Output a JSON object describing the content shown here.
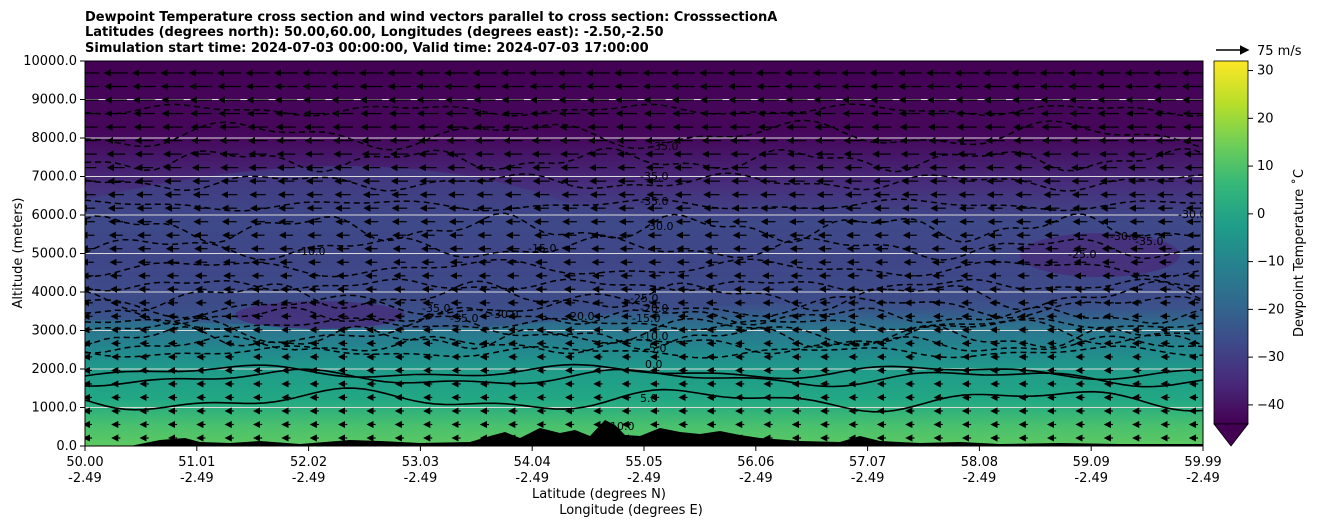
{
  "chart_data": {
    "type": "heatmap",
    "title_lines": [
      "Dewpoint Temperature cross section and wind vectors parallel to cross section: CrosssectionA",
      "Latitudes (degrees north): 50.00,60.00, Longitudes (degrees east): -2.50,-2.50",
      "Simulation start time: 2024-07-03 00:00:00, Valid time: 2024-07-03 17:00:00"
    ],
    "ylabel": "Altitude (meters)",
    "xlabel_lines": [
      "Latitude (degrees N)",
      "Longitude (degrees E)"
    ],
    "ylim": [
      0,
      10000
    ],
    "y_ticks": [
      "0.0",
      "1000.0",
      "2000.0",
      "3000.0",
      "4000.0",
      "5000.0",
      "6000.0",
      "7000.0",
      "8000.0",
      "9000.0",
      "10000.0"
    ],
    "x_ticks": [
      {
        "lat": "50.00",
        "lon": "-2.49"
      },
      {
        "lat": "51.01",
        "lon": "-2.49"
      },
      {
        "lat": "52.02",
        "lon": "-2.49"
      },
      {
        "lat": "53.03",
        "lon": "-2.49"
      },
      {
        "lat": "54.04",
        "lon": "-2.49"
      },
      {
        "lat": "55.05",
        "lon": "-2.49"
      },
      {
        "lat": "56.06",
        "lon": "-2.49"
      },
      {
        "lat": "57.07",
        "lon": "-2.49"
      },
      {
        "lat": "58.08",
        "lon": "-2.49"
      },
      {
        "lat": "59.09",
        "lon": "-2.49"
      },
      {
        "lat": "59.99",
        "lon": "-2.49"
      }
    ],
    "grid": "horizontal",
    "colorbar": {
      "label": "Dewpoint Temperature $^\\circ$C",
      "label_display": "Dewpoint Temperature ˚C",
      "range": [
        -44,
        32
      ],
      "ticks": [
        "30",
        "20",
        "10",
        "0",
        "−10",
        "−20",
        "−30",
        "−40"
      ],
      "extend": "min",
      "colormap": "viridis"
    },
    "wind_key": {
      "label": "75 m/s"
    },
    "dewpoint_profile_celsius": {
      "altitude_m": [
        0,
        1000,
        2000,
        2500,
        3000,
        3500,
        4000,
        5000,
        6000,
        7000,
        8000,
        9000,
        10000
      ],
      "typical_value": [
        18,
        8,
        0,
        -8,
        -20,
        -28,
        -25,
        -22,
        -28,
        -35,
        -40,
        -44,
        -45
      ]
    },
    "contour_labels": [
      "10.0",
      "5.0",
      "0.0",
      "-5.0",
      "-10.0",
      "-15.0",
      "-20.0",
      "-25.0",
      "-30.0",
      "-35.0",
      "-35.0",
      "-35.0",
      "-30.0",
      "-20.0",
      "-15.0",
      "-10.0",
      "-35.0",
      "-25.0",
      "-30.0",
      "-35.0",
      "-35.0",
      "-30.0"
    ],
    "terrain": "low elevation land profile along cross section (black fill)"
  },
  "colors": {
    "viridis": [
      "#440154",
      "#482878",
      "#3e4989",
      "#31688e",
      "#26828e",
      "#1f9e89",
      "#35b779",
      "#6ece58",
      "#b5de2b",
      "#fde725"
    ],
    "terrain": "#000000",
    "contour": "#000000",
    "grid": "#d9d9d9"
  }
}
